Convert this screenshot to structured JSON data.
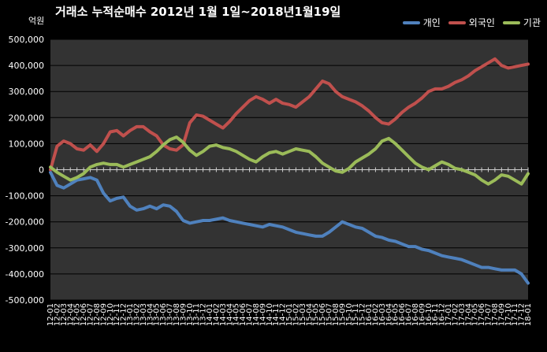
{
  "colors": {
    "개인": "#4f81bd",
    "외국인": "#c0504d",
    "기관": "#9bbb59",
    "plot_bg": "#333333",
    "grid": "#000000"
  },
  "chart_data": {
    "type": "line",
    "title": "거래소 누적순매수 2012년 1월 1일~2018년1월19일",
    "unit": "억원",
    "ylim": [
      -500000,
      500000
    ],
    "yticks": [
      500000,
      400000,
      300000,
      200000,
      100000,
      0,
      -100000,
      -200000,
      -300000,
      -400000,
      -500000
    ],
    "ytick_labels": [
      "500,000",
      "400,000",
      "300,000",
      "200,000",
      "100,000",
      "0",
      "-100,000",
      "-200,000",
      "-300,000",
      "-400,000",
      "-500,000"
    ],
    "legend_position": "top-right",
    "x_labels": [
      "12-01",
      "12-02",
      "12-03",
      "12-04",
      "12-05",
      "12-06",
      "12-07",
      "12-08",
      "12-09",
      "12-10",
      "12-11",
      "12-12",
      "13-01",
      "13-02",
      "13-03",
      "13-04",
      "13-05",
      "13-06",
      "13-07",
      "13-08",
      "13-09",
      "13-10",
      "13-11",
      "13-12",
      "14-01",
      "14-02",
      "14-03",
      "14-04",
      "14-05",
      "14-06",
      "14-07",
      "14-08",
      "14-09",
      "14-10",
      "14-11",
      "14-12",
      "15-01",
      "15-02",
      "15-03",
      "15-04",
      "15-05",
      "15-06",
      "15-07",
      "15-08",
      "15-09",
      "15-10",
      "15-11",
      "15-12",
      "16-01",
      "16-02",
      "16-03",
      "16-04",
      "16-05",
      "16-06",
      "16-07",
      "16-08",
      "16-09",
      "16-10",
      "16-11",
      "16-12",
      "17-01",
      "17-02",
      "17-03",
      "17-04",
      "17-05",
      "17-06",
      "17-07",
      "17-08",
      "17-09",
      "17-10",
      "17-11",
      "17-12",
      "18-01"
    ],
    "series": [
      {
        "name": "개인",
        "color": "#4f81bd",
        "values": [
          -10000,
          -60000,
          -70000,
          -55000,
          -40000,
          -35000,
          -30000,
          -40000,
          -90000,
          -120000,
          -110000,
          -105000,
          -140000,
          -155000,
          -150000,
          -140000,
          -150000,
          -135000,
          -140000,
          -160000,
          -195000,
          -205000,
          -200000,
          -195000,
          -195000,
          -190000,
          -185000,
          -195000,
          -200000,
          -205000,
          -210000,
          -215000,
          -220000,
          -210000,
          -215000,
          -220000,
          -230000,
          -240000,
          -245000,
          -250000,
          -255000,
          -255000,
          -240000,
          -220000,
          -200000,
          -210000,
          -220000,
          -225000,
          -240000,
          -255000,
          -260000,
          -270000,
          -275000,
          -285000,
          -295000,
          -295000,
          -305000,
          -310000,
          -320000,
          -330000,
          -335000,
          -340000,
          -345000,
          -355000,
          -365000,
          -375000,
          -375000,
          -380000,
          -385000,
          -385000,
          -385000,
          -400000,
          -435000
        ]
      },
      {
        "name": "외국인",
        "color": "#c0504d",
        "values": [
          0,
          90000,
          110000,
          100000,
          80000,
          75000,
          95000,
          70000,
          100000,
          145000,
          150000,
          130000,
          150000,
          165000,
          165000,
          145000,
          130000,
          95000,
          80000,
          75000,
          95000,
          180000,
          210000,
          205000,
          190000,
          175000,
          160000,
          185000,
          215000,
          240000,
          265000,
          280000,
          270000,
          255000,
          270000,
          255000,
          250000,
          240000,
          260000,
          280000,
          310000,
          340000,
          330000,
          300000,
          280000,
          270000,
          260000,
          245000,
          225000,
          200000,
          180000,
          175000,
          195000,
          220000,
          240000,
          255000,
          275000,
          300000,
          310000,
          310000,
          320000,
          335000,
          345000,
          360000,
          380000,
          395000,
          410000,
          425000,
          400000,
          390000,
          395000,
          400000,
          405000
        ]
      },
      {
        "name": "기관",
        "color": "#9bbb59",
        "values": [
          10000,
          -10000,
          -25000,
          -40000,
          -30000,
          -15000,
          10000,
          20000,
          25000,
          20000,
          20000,
          10000,
          20000,
          30000,
          40000,
          50000,
          70000,
          95000,
          115000,
          125000,
          105000,
          75000,
          55000,
          70000,
          90000,
          95000,
          85000,
          80000,
          70000,
          55000,
          40000,
          30000,
          50000,
          65000,
          70000,
          60000,
          70000,
          80000,
          75000,
          70000,
          50000,
          25000,
          10000,
          -5000,
          -10000,
          5000,
          30000,
          45000,
          60000,
          80000,
          110000,
          120000,
          100000,
          75000,
          50000,
          25000,
          10000,
          0,
          15000,
          30000,
          20000,
          5000,
          0,
          -10000,
          -20000,
          -40000,
          -55000,
          -40000,
          -20000,
          -25000,
          -40000,
          -55000,
          -15000
        ]
      }
    ]
  }
}
